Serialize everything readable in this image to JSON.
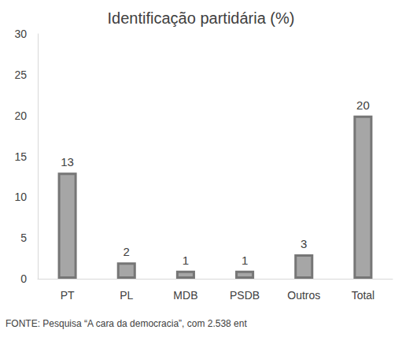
{
  "chart_data": {
    "type": "bar",
    "title": "Identificação partidária (%)",
    "categories": [
      "PT",
      "PL",
      "MDB",
      "PSDB",
      "Outros",
      "Total"
    ],
    "values": [
      13,
      2,
      1,
      1,
      3,
      20
    ],
    "color": "#a6a6a6",
    "ylim": [
      0,
      30
    ],
    "yticks": [
      0,
      5,
      10,
      15,
      20,
      25,
      30
    ],
    "grid": false,
    "data_labels": true,
    "source": "FONTE: Pesquisa “A cara da democracia”, com 2.538 ent"
  }
}
